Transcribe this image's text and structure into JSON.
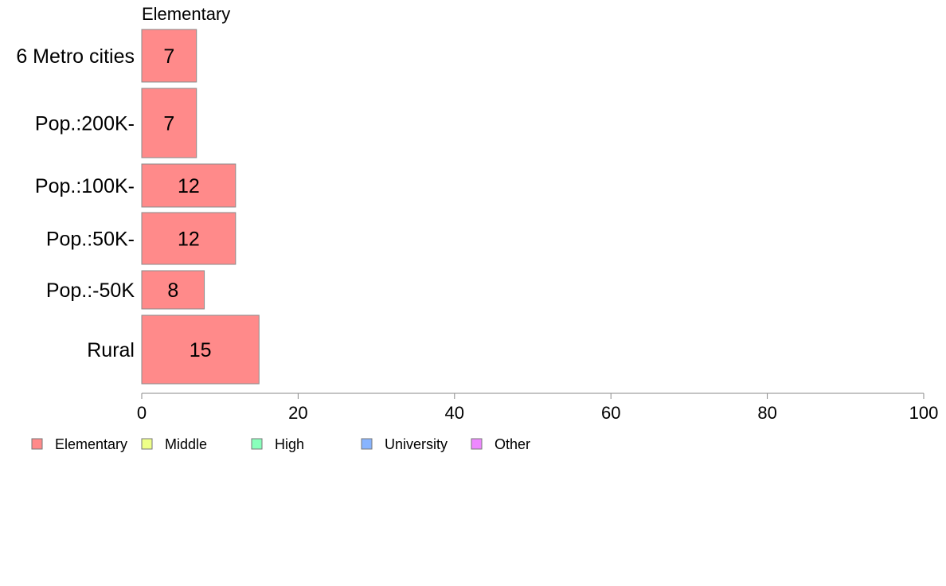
{
  "chart_data": {
    "type": "bar",
    "orientation": "horizontal",
    "stacked": true,
    "panel_title": "Elementary",
    "categories": [
      "6 Metro cities",
      "Pop.:200K-",
      "Pop.:100K-",
      "Pop.:50K-",
      "Pop.:-50K",
      "Rural"
    ],
    "series": [
      {
        "name": "Elementary",
        "values": [
          7,
          7,
          12,
          12,
          8,
          15
        ],
        "color": "#ff8a8a"
      }
    ],
    "xlim": [
      0,
      100
    ],
    "xticks": [
      0,
      20,
      40,
      60,
      80,
      100
    ],
    "grid": false,
    "legend": {
      "position": "bottom-left",
      "items": [
        {
          "name": "Elementary",
          "color": "#ff8a8a"
        },
        {
          "name": "Middle",
          "color": "#eeff88"
        },
        {
          "name": "High",
          "color": "#88ffbb"
        },
        {
          "name": "University",
          "color": "#88b4ff"
        },
        {
          "name": "Other",
          "color": "#ee88ff"
        }
      ]
    }
  }
}
